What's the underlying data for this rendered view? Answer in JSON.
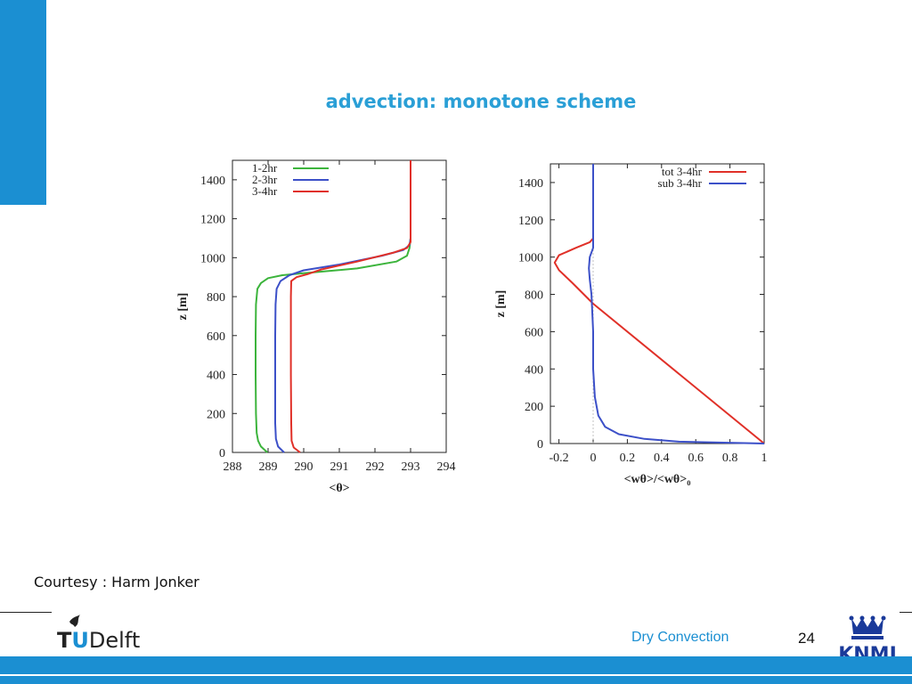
{
  "slide": {
    "title": "advection: monotone scheme",
    "courtesy": "Courtesy : Harm Jonker",
    "footer_title": "Dry Convection",
    "page_number": "24",
    "logo_left_text": "TUDelft",
    "logo_right_text": "KNMI",
    "colors": {
      "accent": "#1b8fd2",
      "title": "#2a9fd6",
      "band": "#1b8fd2"
    }
  },
  "chart_data": [
    {
      "type": "line",
      "xlabel": "<θ>",
      "ylabel": "z [m]",
      "xlim": [
        288,
        294
      ],
      "ylim": [
        0,
        1500
      ],
      "xticks": [
        288,
        289,
        290,
        291,
        292,
        293,
        294
      ],
      "yticks": [
        0,
        200,
        400,
        600,
        800,
        1000,
        1200,
        1400
      ],
      "legend_position": "top-left",
      "series": [
        {
          "name": "1-2hr",
          "color": "#3cb43c",
          "x": [
            288.98,
            288.8,
            288.72,
            288.68,
            288.66,
            288.65,
            288.65,
            288.66,
            288.7,
            288.8,
            289.0,
            289.4,
            290.0,
            291.5,
            292.6,
            292.9,
            292.97,
            293.0,
            293.0
          ],
          "y": [
            0,
            30,
            60,
            100,
            200,
            400,
            600,
            760,
            840,
            870,
            895,
            910,
            920,
            945,
            980,
            1010,
            1050,
            1100,
            1500
          ]
        },
        {
          "name": "2-3hr",
          "color": "#3c50c8",
          "x": [
            289.45,
            289.28,
            289.22,
            289.2,
            289.2,
            289.2,
            289.21,
            289.24,
            289.35,
            289.6,
            290.0,
            291.0,
            292.2,
            292.8,
            292.97,
            293.0,
            293.0
          ],
          "y": [
            0,
            30,
            70,
            150,
            400,
            600,
            760,
            840,
            880,
            910,
            935,
            965,
            1010,
            1040,
            1065,
            1100,
            1500
          ]
        },
        {
          "name": "3-4hr",
          "color": "#e03028",
          "x": [
            289.9,
            289.72,
            289.66,
            289.65,
            289.64,
            289.64,
            289.64,
            289.65,
            289.8,
            290.1,
            290.5,
            291.5,
            292.5,
            292.9,
            293.0,
            293.0
          ],
          "y": [
            0,
            25,
            60,
            150,
            400,
            600,
            800,
            880,
            900,
            915,
            940,
            980,
            1025,
            1050,
            1080,
            1500
          ]
        }
      ]
    },
    {
      "type": "line",
      "xlabel": "<wθ>/<wθ>₀",
      "ylabel": "z [m]",
      "xlim": [
        -0.25,
        1
      ],
      "ylim": [
        0,
        1500
      ],
      "xticks": [
        -0.2,
        0,
        0.2,
        0.4,
        0.6,
        0.8,
        1
      ],
      "yticks": [
        0,
        200,
        400,
        600,
        800,
        1000,
        1200,
        1400
      ],
      "legend_position": "top-right",
      "series": [
        {
          "name": "tot 3-4hr",
          "color": "#e03028",
          "x": [
            1.0,
            0.0,
            -0.12,
            -0.2,
            -0.225,
            -0.2,
            -0.1,
            -0.02,
            0.0,
            0.0
          ],
          "y": [
            0,
            750,
            860,
            930,
            970,
            1010,
            1050,
            1080,
            1100,
            1500
          ]
        },
        {
          "name": "sub 3-4hr",
          "color": "#3c50c8",
          "x": [
            1.0,
            0.5,
            0.3,
            0.15,
            0.07,
            0.03,
            0.01,
            0.0,
            0.0,
            -0.01,
            -0.02,
            -0.025,
            -0.02,
            0.0,
            0.0,
            0.0
          ],
          "y": [
            0,
            10,
            25,
            50,
            90,
            150,
            250,
            400,
            600,
            800,
            880,
            940,
            1000,
            1050,
            1100,
            1500
          ]
        }
      ]
    }
  ]
}
